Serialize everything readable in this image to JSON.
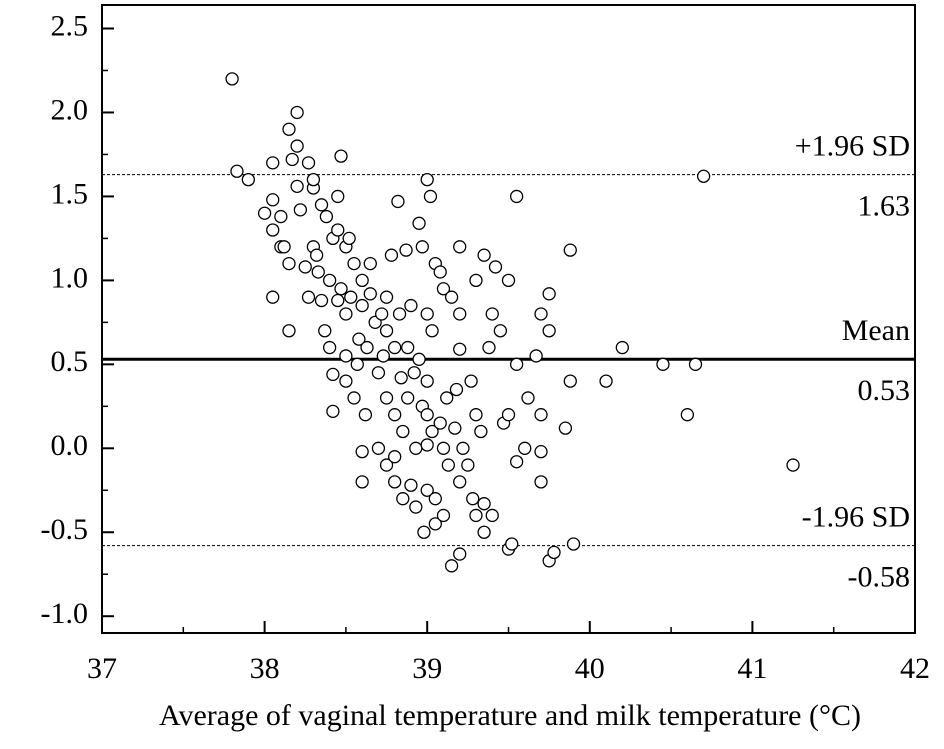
{
  "chart_data": {
    "type": "scatter",
    "x_label": "Average of vaginal temperature and milk temperature (°C)",
    "xlim": [
      37,
      42
    ],
    "xticks": [
      37,
      38,
      39,
      40,
      41,
      42
    ],
    "x_minor_ticks": [
      37.5,
      38.5,
      39.5,
      40.5,
      41.5
    ],
    "ylim": [
      -1.1,
      2.64
    ],
    "yticks": [
      {
        "value": -1,
        "label": "-1.0"
      },
      {
        "value": -0.5,
        "label": "-0.5"
      },
      {
        "value": 0,
        "label": "0.0"
      },
      {
        "value": 0.5,
        "label": "0.5"
      },
      {
        "value": 1,
        "label": "1.0"
      },
      {
        "value": 1.5,
        "label": "1.5"
      },
      {
        "value": 2,
        "label": "2.0"
      },
      {
        "value": 2.5,
        "label": "2.5"
      }
    ],
    "y_minor_ticks": [
      -0.75,
      -0.25,
      0.25,
      0.75,
      1.25,
      1.75,
      2.25
    ],
    "reference_lines": [
      {
        "label": "+1.96 SD",
        "value": 1.63,
        "style": "dashed"
      },
      {
        "label": "Mean",
        "value": 0.53,
        "style": "solid"
      },
      {
        "label": "-1.96 SD",
        "value": -0.58,
        "style": "dashed"
      }
    ],
    "series": [
      {
        "color": "#000000",
        "x": [
          37.8,
          37.83,
          37.9,
          38.0,
          38.05,
          38.05,
          38.05,
          38.05,
          38.1,
          38.1,
          38.12,
          38.15,
          38.15,
          38.15,
          38.17,
          38.2,
          38.2,
          38.2,
          38.22,
          38.25,
          38.27,
          38.27,
          38.3,
          38.3,
          38.3,
          38.32,
          38.33,
          38.35,
          38.35,
          38.37,
          38.38,
          38.4,
          38.4,
          38.42,
          38.42,
          38.42,
          38.45,
          38.45,
          38.45,
          38.47,
          38.47,
          38.5,
          38.5,
          38.5,
          38.5,
          38.52,
          38.53,
          38.55,
          38.55,
          38.57,
          38.58,
          38.6,
          38.6,
          38.6,
          38.6,
          38.62,
          38.63,
          38.65,
          38.65,
          38.68,
          38.7,
          38.7,
          38.72,
          38.73,
          38.75,
          38.75,
          38.75,
          38.75,
          38.78,
          38.8,
          38.8,
          38.8,
          38.8,
          38.82,
          38.83,
          38.84,
          38.85,
          38.85,
          38.87,
          38.88,
          38.88,
          38.9,
          38.9,
          38.92,
          38.93,
          38.93,
          38.95,
          38.95,
          38.97,
          38.97,
          38.98,
          39.0,
          39.0,
          39.0,
          39.0,
          39.0,
          39.0,
          39.02,
          39.03,
          39.03,
          39.05,
          39.05,
          39.05,
          39.08,
          39.08,
          39.1,
          39.1,
          39.1,
          39.12,
          39.13,
          39.15,
          39.15,
          39.17,
          39.18,
          39.2,
          39.2,
          39.2,
          39.2,
          39.2,
          39.22,
          39.25,
          39.27,
          39.28,
          39.3,
          39.3,
          39.3,
          39.33,
          39.35,
          39.35,
          39.35,
          39.38,
          39.4,
          39.4,
          39.42,
          39.45,
          39.47,
          39.5,
          39.5,
          39.5,
          39.52,
          39.55,
          39.55,
          39.55,
          39.6,
          39.62,
          39.67,
          39.7,
          39.7,
          39.7,
          39.7,
          39.75,
          39.75,
          39.75,
          39.78,
          39.85,
          39.88,
          39.88,
          39.9,
          40.1,
          40.2,
          40.45,
          40.6,
          40.65,
          40.7,
          41.25
        ],
        "values": [
          2.2,
          1.65,
          1.6,
          1.4,
          1.7,
          1.48,
          1.3,
          0.9,
          1.2,
          1.38,
          1.2,
          1.9,
          1.1,
          0.7,
          1.72,
          2.0,
          1.8,
          1.56,
          1.42,
          1.08,
          1.7,
          0.9,
          1.55,
          1.6,
          1.2,
          1.15,
          1.05,
          1.45,
          0.88,
          0.7,
          1.38,
          1.0,
          0.6,
          1.25,
          0.44,
          0.22,
          1.5,
          1.3,
          0.88,
          1.74,
          0.95,
          1.2,
          0.8,
          0.55,
          0.4,
          1.25,
          0.9,
          1.1,
          0.3,
          0.5,
          0.65,
          1.0,
          0.85,
          -0.02,
          -0.2,
          0.2,
          0.6,
          1.1,
          0.92,
          0.75,
          0.45,
          0.0,
          0.8,
          0.55,
          0.9,
          0.7,
          0.3,
          -0.1,
          1.15,
          0.6,
          0.2,
          -0.05,
          -0.2,
          1.47,
          0.8,
          0.42,
          0.1,
          -0.3,
          1.18,
          0.6,
          0.3,
          0.85,
          -0.22,
          0.45,
          0.0,
          -0.35,
          1.34,
          0.53,
          1.2,
          0.25,
          -0.5,
          1.6,
          0.8,
          0.4,
          0.2,
          0.02,
          -0.25,
          1.5,
          0.7,
          0.1,
          1.1,
          -0.3,
          -0.45,
          1.05,
          0.15,
          0.95,
          -0.4,
          0.0,
          0.3,
          -0.1,
          0.9,
          -0.7,
          0.12,
          0.35,
          1.2,
          0.8,
          0.59,
          -0.2,
          -0.63,
          0.0,
          -0.1,
          0.4,
          -0.3,
          1.0,
          0.2,
          -0.4,
          0.1,
          1.15,
          -0.33,
          -0.5,
          0.6,
          0.8,
          -0.4,
          1.08,
          0.7,
          0.15,
          1.0,
          0.2,
          -0.6,
          -0.57,
          1.5,
          0.5,
          -0.08,
          0.0,
          0.3,
          0.55,
          0.8,
          0.2,
          -0.02,
          -0.2,
          0.92,
          0.7,
          -0.67,
          -0.62,
          0.12,
          1.18,
          0.4,
          -0.57,
          0.4,
          0.6,
          0.5,
          0.2,
          0.5,
          1.62,
          -0.1
        ]
      }
    ]
  }
}
